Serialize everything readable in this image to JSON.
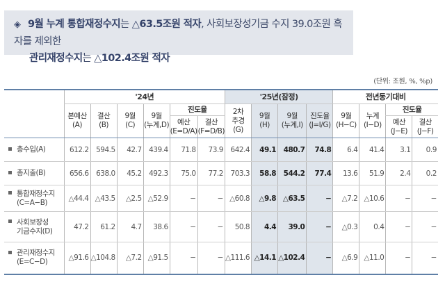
{
  "summary": {
    "icon": "diamond-bullet-icon",
    "line1_bold_a": "9월 누계 통합재정수지",
    "line1_text_a": "는 ",
    "line1_bold_b": "△63.5조원 적자",
    "line1_text_b": ", 사회보장성기금 수지 39.0조원 흑자를 제외한",
    "line2_bold_a": "관리재정수지",
    "line2_text_a": "는 ",
    "line2_bold_b": "△102.4조원 적자"
  },
  "unit": "(단위: 조원, %, %p)",
  "table": {
    "groups": {
      "y24": "'24년",
      "y25": "'25년(잠정)",
      "yoy": "전년동기대비"
    },
    "headers": {
      "A": [
        "본예산",
        "(A)"
      ],
      "B": [
        "결산",
        "(B)"
      ],
      "C": [
        "9월",
        "(C)"
      ],
      "D": [
        "9월",
        "(누계,D)"
      ],
      "prog24": "진도율",
      "E": [
        "예산",
        "(E=D/A)"
      ],
      "F": [
        "결산",
        "(F=D/B)"
      ],
      "G": [
        "2차",
        "추경",
        "(G)"
      ],
      "H": [
        "9월",
        "(H)"
      ],
      "I": [
        "9월",
        "(누계,I)"
      ],
      "J": [
        "진도율",
        "(J=I/G)"
      ],
      "HC": [
        "9월",
        "(H−C)"
      ],
      "ID": [
        "누계",
        "(I−D)"
      ],
      "progyoy": "진도율",
      "JE": [
        "예산",
        "(J−E)"
      ],
      "JF": [
        "결산",
        "(J−F)"
      ]
    },
    "rows": [
      {
        "label": [
          "총수입(A)"
        ],
        "values": [
          "612.2",
          "594.5",
          "42.7",
          "439.4",
          "71.8",
          "73.9",
          "642.4",
          "49.1",
          "480.7",
          "74.8",
          "6.4",
          "41.4",
          "3.1",
          "0.9"
        ]
      },
      {
        "label": [
          "총지출(B)"
        ],
        "values": [
          "656.6",
          "638.0",
          "45.2",
          "492.3",
          "75.0",
          "77.2",
          "703.3",
          "58.8",
          "544.2",
          "77.4",
          "13.6",
          "51.9",
          "2.4",
          "0.2"
        ]
      },
      {
        "label": [
          "통합재정수지",
          "(C=A−B)"
        ],
        "values": [
          "△44.4",
          "△43.5",
          "△2.5",
          "△52.9",
          "−",
          "−",
          "△60.8",
          "△9.8",
          "△63.5",
          "−",
          "△7.2",
          "△10.6",
          "−",
          "−"
        ]
      },
      {
        "label": [
          "사회보장성",
          "기금수지(D)"
        ],
        "values": [
          "47.2",
          "61.2",
          "4.7",
          "38.6",
          "−",
          "−",
          "50.8",
          "4.4",
          "39.0",
          "−",
          "△0.3",
          "0.4",
          "−",
          "−"
        ]
      },
      {
        "label": [
          "관리재정수지",
          "(E=C−D)"
        ],
        "values": [
          "△91.6",
          "△104.8",
          "△7.2",
          "△91.5",
          "−",
          "−",
          "△111.6",
          "△14.1",
          "△102.4",
          "−",
          "△6.9",
          "△11.0",
          "−",
          "−"
        ]
      }
    ]
  },
  "colors": {
    "summary_bg": "#e3e6ec",
    "border_accent": "#5f7fa6",
    "shade": "#dfe5ec"
  }
}
